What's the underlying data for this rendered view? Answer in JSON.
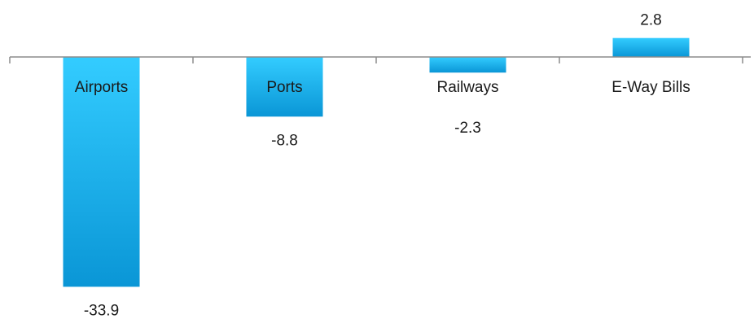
{
  "chart_data": {
    "type": "bar",
    "categories": [
      "Airports",
      "Ports",
      "Railways",
      "E-Way Bills"
    ],
    "values": [
      -33.9,
      -8.8,
      -2.3,
      2.8
    ],
    "data_labels": [
      "-33.9",
      "-8.8",
      "-2.3",
      "2.8"
    ],
    "title": "",
    "xlabel": "",
    "ylabel": "",
    "ylim": [
      -35,
      5
    ],
    "grid": false,
    "legend": "none",
    "bar_color_top": "#33ccff",
    "bar_color_bottom": "#0a96d6",
    "axis_color": "#8c8c8c"
  }
}
